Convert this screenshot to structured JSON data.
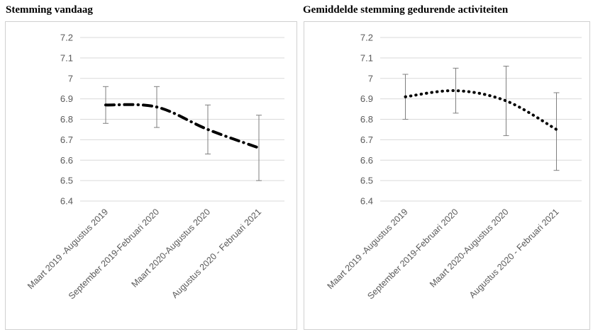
{
  "chart_data": [
    {
      "type": "line",
      "title": "Stemming vandaag",
      "line_style": "dash-dot",
      "categories": [
        "Maart 2019 -Augustus 2019",
        "September 2019-Februari 2020",
        "Maart 2020-Augustus 2020",
        "Augustus 2020 - Februari 2021"
      ],
      "values": [
        6.87,
        6.86,
        6.75,
        6.66
      ],
      "error_low": [
        6.78,
        6.76,
        6.63,
        6.5
      ],
      "error_high": [
        6.96,
        6.96,
        6.87,
        6.82
      ],
      "ylim": [
        6.4,
        7.2
      ],
      "yticks": [
        "7.2",
        "7.1",
        "7",
        "6.9",
        "6.8",
        "6.7",
        "6.6",
        "6.5",
        "6.4"
      ],
      "grid": true,
      "legend": "none"
    },
    {
      "type": "line",
      "title": "Gemiddelde stemming gedurende activiteiten",
      "line_style": "dotted",
      "categories": [
        "Maart 2019 -Augustus 2019",
        "September 2019-Februari 2020",
        "Maart 2020-Augustus 2020",
        "Augustus 2020 - Februari 2021"
      ],
      "values": [
        6.91,
        6.94,
        6.89,
        6.75
      ],
      "error_low": [
        6.8,
        6.83,
        6.72,
        6.55
      ],
      "error_high": [
        7.02,
        7.05,
        7.06,
        6.93
      ],
      "ylim": [
        6.4,
        7.2
      ],
      "yticks": [
        "7.2",
        "7.1",
        "7",
        "6.9",
        "6.8",
        "6.7",
        "6.6",
        "6.5",
        "6.4"
      ],
      "grid": true,
      "legend": "none"
    }
  ],
  "colors": {
    "line": "#000000",
    "grid": "#d9d9d9",
    "errorbar": "#7f7f7f",
    "axis_text": "#595959"
  }
}
